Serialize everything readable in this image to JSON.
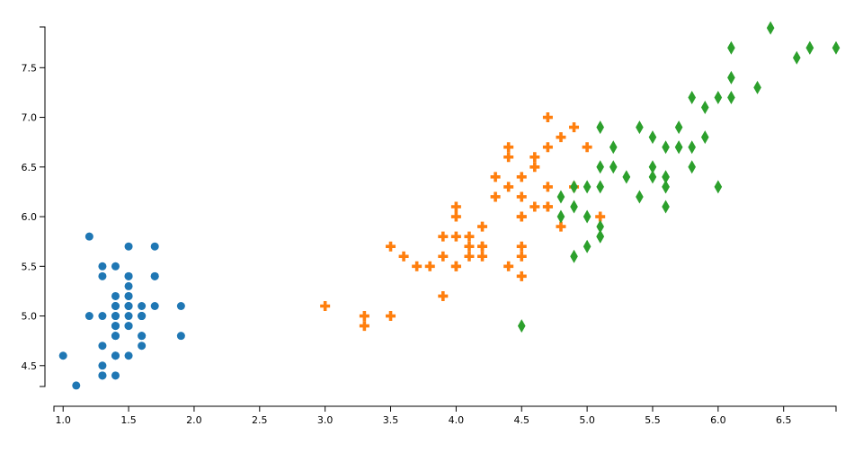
{
  "chart_data": {
    "type": "scatter",
    "xlim": [
      0.93,
      6.9
    ],
    "ylim": [
      4.29,
      7.91
    ],
    "xticks": [
      {
        "value": 1,
        "label": "1.0"
      },
      1.5,
      {
        "value": 2,
        "label": "2.0"
      },
      2.5,
      {
        "value": 3,
        "label": "3.0"
      },
      3.5,
      {
        "value": 4,
        "label": "4.0"
      },
      4.5,
      {
        "value": 5,
        "label": "5.0"
      },
      5.5,
      {
        "value": 6,
        "label": "6.0"
      },
      6.5
    ],
    "yticks": [
      4.5,
      {
        "value": 5,
        "label": "5.0"
      },
      5.5,
      {
        "value": 6,
        "label": "6.0"
      },
      6.5,
      {
        "value": 7,
        "label": "7.0"
      },
      7.5
    ],
    "series": [
      {
        "color": "#1f77b4",
        "marker": "circle",
        "x": [
          1.4,
          1.4,
          1.3,
          1.5,
          1.4,
          1.7,
          1.4,
          1.5,
          1.4,
          1.5,
          1.5,
          1.6,
          1.4,
          1.1,
          1.2,
          1.5,
          1.3,
          1.4,
          1.7,
          1.5,
          1.7,
          1.5,
          1.0,
          1.7,
          1.9,
          1.6,
          1.6,
          1.5,
          1.4,
          1.6,
          1.6,
          1.5,
          1.5,
          1.4,
          1.5,
          1.2,
          1.3,
          1.4,
          1.3,
          1.5,
          1.3,
          1.3,
          1.3,
          1.6,
          1.9,
          1.4,
          1.6,
          1.4,
          1.5,
          1.4
        ],
        "values": [
          5.1,
          4.9,
          4.7,
          4.6,
          5.0,
          5.4,
          4.6,
          5.0,
          4.4,
          4.9,
          5.4,
          4.8,
          4.8,
          4.3,
          5.8,
          5.7,
          5.4,
          5.1,
          5.7,
          5.1,
          5.4,
          5.1,
          4.6,
          5.1,
          4.8,
          5.0,
          5.0,
          5.2,
          5.2,
          4.7,
          4.8,
          5.4,
          5.2,
          5.5,
          4.9,
          5.0,
          5.5,
          4.9,
          4.4,
          5.1,
          5.0,
          4.5,
          4.4,
          5.0,
          5.1,
          4.8,
          5.1,
          4.6,
          5.3,
          5.0
        ]
      },
      {
        "color": "#ff7f0e",
        "marker": "cross",
        "x": [
          4.7,
          4.5,
          4.9,
          4.0,
          4.6,
          4.5,
          4.7,
          3.3,
          4.6,
          3.9,
          3.5,
          4.2,
          4.0,
          4.7,
          3.6,
          4.4,
          4.5,
          4.1,
          4.5,
          3.9,
          4.8,
          4.0,
          4.9,
          4.7,
          4.3,
          4.4,
          4.8,
          5.0,
          4.5,
          3.5,
          3.8,
          3.7,
          3.9,
          5.1,
          4.5,
          4.5,
          4.7,
          4.4,
          4.1,
          4.0,
          4.4,
          4.6,
          4.0,
          3.3,
          4.2,
          4.2,
          4.2,
          4.3,
          3.0,
          4.1
        ],
        "values": [
          7.0,
          6.4,
          6.9,
          5.5,
          6.5,
          5.7,
          6.3,
          4.9,
          6.6,
          5.2,
          5.0,
          5.9,
          6.0,
          6.1,
          5.6,
          6.7,
          5.6,
          5.8,
          6.2,
          5.6,
          5.9,
          6.1,
          6.3,
          6.1,
          6.4,
          6.6,
          6.8,
          6.7,
          6.0,
          5.7,
          5.5,
          5.5,
          5.8,
          6.0,
          5.4,
          6.0,
          6.7,
          6.3,
          5.6,
          5.5,
          5.5,
          6.1,
          5.8,
          5.0,
          5.6,
          5.7,
          5.7,
          6.2,
          5.1,
          5.7
        ]
      },
      {
        "color": "#2ca02c",
        "marker": "diamond",
        "x": [
          6.0,
          5.1,
          5.9,
          5.6,
          5.8,
          6.6,
          4.5,
          6.3,
          5.8,
          6.1,
          5.1,
          5.3,
          5.5,
          5.0,
          5.1,
          5.3,
          5.5,
          6.7,
          6.9,
          5.0,
          5.7,
          4.9,
          6.7,
          4.9,
          5.7,
          6.0,
          4.8,
          4.9,
          5.6,
          5.8,
          6.1,
          6.4,
          5.6,
          5.1,
          5.6,
          6.1,
          5.6,
          5.5,
          4.8,
          5.4,
          5.6,
          5.1,
          5.1,
          5.9,
          5.7,
          5.2,
          5.0,
          5.2,
          5.4,
          5.1
        ],
        "values": [
          6.3,
          5.8,
          7.1,
          6.3,
          6.5,
          7.6,
          4.9,
          7.3,
          6.7,
          7.2,
          6.5,
          6.4,
          6.8,
          5.7,
          5.8,
          6.4,
          6.5,
          7.7,
          7.7,
          6.0,
          6.9,
          5.6,
          7.7,
          6.3,
          6.7,
          7.2,
          6.2,
          6.1,
          6.4,
          7.2,
          7.4,
          7.9,
          6.4,
          6.3,
          6.1,
          7.7,
          6.3,
          6.4,
          6.0,
          6.9,
          6.7,
          6.9,
          5.8,
          6.8,
          6.7,
          6.7,
          6.3,
          6.5,
          6.2,
          5.9
        ]
      }
    ]
  }
}
